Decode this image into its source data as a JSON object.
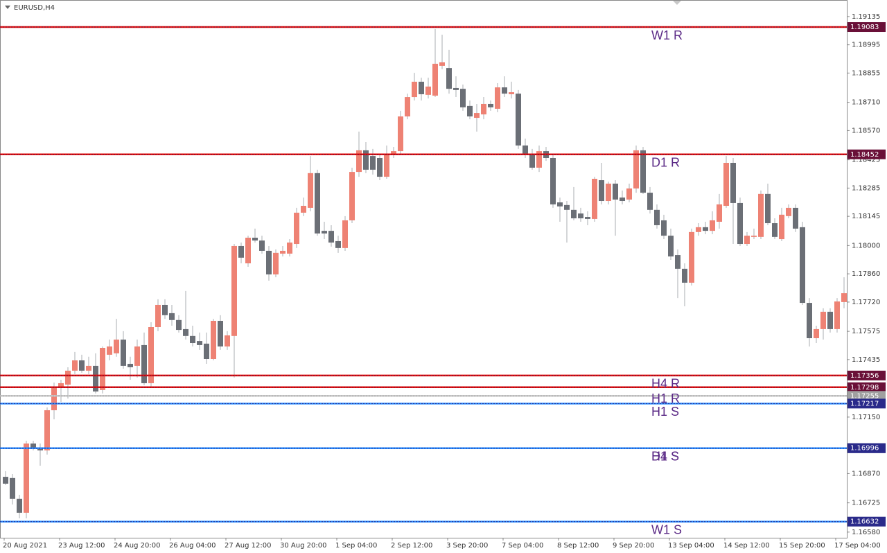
{
  "chart_data": {
    "type": "candlestick",
    "title": "EURUSD,H4",
    "up_color": "#ee8274",
    "down_color": "#6b6f76",
    "wick_color": "#a8acb2",
    "level_text_color": "#5b2a86",
    "categories": [
      "20 Aug 2021",
      null,
      null,
      null,
      null,
      null,
      null,
      null,
      "23 Aug 12:00",
      null,
      null,
      null,
      null,
      null,
      null,
      null,
      "24 Aug 20:00",
      null,
      null,
      null,
      null,
      null,
      null,
      null,
      "26 Aug 04:00",
      null,
      null,
      null,
      null,
      null,
      null,
      null,
      "27 Aug 12:00",
      null,
      null,
      null,
      null,
      null,
      null,
      null,
      "30 Aug 20:00",
      null,
      null,
      null,
      null,
      null,
      null,
      null,
      "1 Sep 04:00",
      null,
      null,
      null,
      null,
      null,
      null,
      null,
      "2 Sep 12:00",
      null,
      null,
      null,
      null,
      null,
      null,
      null,
      "3 Sep 20:00",
      null,
      null,
      null,
      null,
      null,
      null,
      null,
      "7 Sep 04:00",
      null,
      null,
      null,
      null,
      null,
      null,
      null,
      "8 Sep 12:00",
      null,
      null,
      null,
      null,
      null,
      null,
      null,
      "9 Sep 20:00",
      null,
      null,
      null,
      null,
      null,
      null,
      null,
      "13 Sep 04:00",
      null,
      null,
      null,
      null,
      null,
      null,
      null,
      "14 Sep 12:00",
      null,
      null,
      null,
      null,
      null,
      null,
      null,
      "15 Sep 20:00",
      null,
      null,
      null,
      null,
      null,
      null,
      null,
      "17 Sep 04:00",
      null
    ],
    "open": [
      1.16854,
      1.16848,
      1.16745,
      1.16676,
      1.17019,
      1.16992,
      1.16985,
      1.17184,
      1.17294,
      1.17311,
      1.1738,
      1.17431,
      1.1738,
      1.17404,
      1.17284,
      1.17459,
      1.17466,
      1.17534,
      1.17414,
      1.17404,
      1.17507,
      1.17318,
      1.17596,
      1.17706,
      1.17665,
      1.17631,
      1.17586,
      1.17552,
      1.17527,
      1.17514,
      1.17438,
      1.17627,
      1.175,
      1.17552,
      1.17998,
      1.17912,
      1.18039,
      1.18025,
      1.17974,
      1.17857,
      1.1796,
      1.1796,
      1.18008,
      1.18163,
      1.18187,
      1.18359,
      1.18073,
      1.18073,
      1.18022,
      1.17988,
      1.18125,
      1.18365,
      1.18472,
      1.18444,
      1.18434,
      1.18341,
      1.18451,
      1.18468,
      1.1864,
      1.18736,
      1.18812,
      1.18747,
      1.18743,
      1.18891,
      1.1888,
      1.18781,
      1.18777,
      1.18692,
      1.18633,
      1.1865,
      1.18702,
      1.18678,
      1.18784,
      1.1875,
      1.18753,
      1.18496,
      1.18455,
      1.18386,
      1.18468,
      1.18434,
      1.18214,
      1.18201,
      1.18177,
      1.18159,
      1.18142,
      1.18132,
      1.18324,
      1.18221,
      1.18307,
      1.18238,
      1.18228,
      1.18283,
      1.18472,
      1.18262,
      1.18177,
      1.18125,
      1.18049,
      1.17953,
      1.17885,
      1.17816,
      1.18067,
      1.18091,
      1.18073,
      1.18118,
      1.18197,
      1.1841,
      1.18211,
      1.18008,
      1.18043,
      1.18043,
      1.18256,
      1.18111,
      1.18032,
      1.18146,
      1.18187,
      1.18091,
      1.17716,
      1.17541,
      1.17586,
      1.17672,
      1.17586,
      1.1772
    ],
    "high": [
      1.16882,
      1.16868,
      1.16765,
      1.17033,
      1.17033,
      1.17019,
      1.17198,
      1.17321,
      1.17335,
      1.17397,
      1.17473,
      1.17459,
      1.17449,
      1.17466,
      1.175,
      1.17534,
      1.17637,
      1.17576,
      1.17449,
      1.17534,
      1.17569,
      1.1762,
      1.17734,
      1.17734,
      1.17706,
      1.17655,
      1.17775,
      1.17603,
      1.17569,
      1.17569,
      1.17637,
      1.17655,
      1.17576,
      1.18008,
      1.18015,
      1.18049,
      1.18084,
      1.18049,
      1.17998,
      1.17981,
      1.17998,
      1.18032,
      1.18187,
      1.18238,
      1.18444,
      1.18376,
      1.18118,
      1.18101,
      1.18049,
      1.18146,
      1.18386,
      1.18565,
      1.18513,
      1.18479,
      1.18455,
      1.18496,
      1.18489,
      1.18668,
      1.18753,
      1.18856,
      1.18832,
      1.18832,
      1.19073,
      1.19045,
      1.1897,
      1.18839,
      1.18798,
      1.18719,
      1.18702,
      1.18736,
      1.18719,
      1.18805,
      1.18839,
      1.18812,
      1.18771,
      1.1853,
      1.18479,
      1.18496,
      1.18489,
      1.18455,
      1.18238,
      1.18221,
      1.1829,
      1.18187,
      1.1817,
      1.18341,
      1.1841,
      1.18317,
      1.18324,
      1.18273,
      1.18307,
      1.18496,
      1.18489,
      1.1829,
      1.18204,
      1.18153,
      1.18084,
      1.17981,
      1.17912,
      1.18084,
      1.18111,
      1.18118,
      1.1817,
      1.18256,
      1.18444,
      1.18434,
      1.18238,
      1.18067,
      1.18084,
      1.18273,
      1.18307,
      1.18135,
      1.18187,
      1.18204,
      1.18204,
      1.18118,
      1.1774,
      1.17603,
      1.17689,
      1.17689,
      1.1774,
      1.17843
    ],
    "low": [
      1.16813,
      1.16717,
      1.16648,
      1.16648,
      1.16985,
      1.16909,
      1.16964,
      1.17139,
      1.17225,
      1.17242,
      1.17363,
      1.1737,
      1.17363,
      1.17267,
      1.17267,
      1.17431,
      1.17449,
      1.1739,
      1.17335,
      1.17346,
      1.17308,
      1.17301,
      1.17576,
      1.17637,
      1.17603,
      1.17569,
      1.17534,
      1.175,
      1.17483,
      1.17414,
      1.17431,
      1.17483,
      1.17483,
      1.17346,
      1.17912,
      1.17895,
      1.18015,
      1.1796,
      1.17826,
      1.17843,
      1.17946,
      1.17946,
      1.17988,
      1.18146,
      1.1817,
      1.18049,
      1.18032,
      1.17995,
      1.17964,
      1.17974,
      1.18111,
      1.18341,
      1.18359,
      1.18352,
      1.18324,
      1.18331,
      1.18434,
      1.18455,
      1.18626,
      1.18719,
      1.18719,
      1.18729,
      1.18736,
      1.18874,
      1.18753,
      1.18736,
      1.18668,
      1.18626,
      1.18565,
      1.18626,
      1.18668,
      1.18661,
      1.18736,
      1.18729,
      1.18479,
      1.18434,
      1.18376,
      1.18365,
      1.1842,
      1.18187,
      1.18118,
      1.18015,
      1.18125,
      1.18118,
      1.18101,
      1.18118,
      1.18204,
      1.18204,
      1.18049,
      1.18204,
      1.18214,
      1.18262,
      1.18256,
      1.18159,
      1.18084,
      1.18032,
      1.17929,
      1.1774,
      1.17699,
      1.17802,
      1.18049,
      1.18056,
      1.18056,
      1.18084,
      1.18187,
      1.18008,
      1.17998,
      1.17998,
      1.18032,
      1.18032,
      1.18101,
      1.18032,
      1.18022,
      1.18135,
      1.18067,
      1.17706,
      1.175,
      1.17517,
      1.17534,
      1.17569,
      1.17569,
      1.17689
    ],
    "close": [
      1.1682,
      1.16745,
      1.16676,
      1.17019,
      1.16992,
      1.16985,
      1.17184,
      1.17294,
      1.17318,
      1.1738,
      1.17431,
      1.1738,
      1.17404,
      1.17277,
      1.17493,
      1.175,
      1.17534,
      1.17404,
      1.17397,
      1.175,
      1.17318,
      1.17596,
      1.17706,
      1.17655,
      1.17631,
      1.17582,
      1.17552,
      1.17517,
      1.17507,
      1.17438,
      1.17627,
      1.175,
      1.17555,
      1.17998,
      1.1794,
      1.18039,
      1.18025,
      1.17974,
      1.17857,
      1.17964,
      1.17974,
      1.18015,
      1.18163,
      1.18197,
      1.18359,
      1.1806,
      1.1806,
      1.18015,
      1.17988,
      1.18125,
      1.18365,
      1.18472,
      1.18376,
      1.18376,
      1.18341,
      1.18451,
      1.18468,
      1.1864,
      1.18736,
      1.18812,
      1.1875,
      1.18788,
      1.18901,
      1.18908,
      1.18777,
      1.18771,
      1.18685,
      1.1864,
      1.18657,
      1.18702,
      1.18685,
      1.18784,
      1.18753,
      1.1876,
      1.18496,
      1.18455,
      1.18386,
      1.18468,
      1.18434,
      1.18204,
      1.18194,
      1.18177,
      1.18135,
      1.18135,
      1.18132,
      1.18331,
      1.18221,
      1.18307,
      1.18228,
      1.18221,
      1.18283,
      1.18472,
      1.18262,
      1.18177,
      1.18101,
      1.18049,
      1.17946,
      1.17885,
      1.17816,
      1.18067,
      1.18091,
      1.18073,
      1.18125,
      1.18204,
      1.1841,
      1.18211,
      1.18008,
      1.18049,
      1.18049,
      1.18256,
      1.18111,
      1.18043,
      1.18153,
      1.18187,
      1.18084,
      1.17716,
      1.17541,
      1.17586,
      1.17672,
      1.17586,
      1.17723,
      1.17764
    ],
    "ylim": [
      1.16552,
      1.19217
    ],
    "yticks": [
      1.19135,
      1.18995,
      1.18855,
      {
        "value": 1.1871,
        "label": "1.18710"
      },
      {
        "value": 1.1857,
        "label": "1.18570"
      },
      1.18425,
      1.18285,
      1.18145,
      {
        "value": 1.18,
        "label": "1.18000"
      },
      {
        "value": 1.1786,
        "label": "1.17860"
      },
      {
        "value": 1.1772,
        "label": "1.17720"
      },
      1.17575,
      1.17435,
      {
        "value": 1.1715,
        "label": "1.17150"
      },
      {
        "value": 1.1687,
        "label": "1.16870"
      },
      1.16725,
      {
        "value": 1.1658,
        "label": "1.16580"
      }
    ],
    "levels": [
      {
        "value": 1.19083,
        "name": "W1 R",
        "color": "#e01010",
        "label_color": "#6a1038"
      },
      {
        "value": 1.18452,
        "name": "D1 R",
        "color": "#e01010",
        "label_color": "#6a1038"
      },
      {
        "value": 1.17356,
        "color": "#e01010",
        "label_color": "#6a1038"
      },
      {
        "value": 1.17298,
        "name": "H4 R",
        "color": "#e01010",
        "label_color": "#6a1038"
      },
      {
        "value": 1.17255,
        "name": "H1 R",
        "color": "#c8c8c8",
        "label_color": "#a0a0a0"
      },
      {
        "value": 1.17217,
        "name": "H1 S",
        "color": "#2a8cff",
        "label_color": "#2a2a8a"
      },
      {
        "value": 1.16996,
        "name": "D1 S",
        "color": "#2a8cff",
        "label_color": "#2a2a8a"
      },
      {
        "value": 1.16996,
        "name": "H4 S",
        "color": "#2a8cff",
        "label_color": "#2a2a8a"
      },
      {
        "value": 1.16632,
        "name": "W1 S",
        "color": "#2a8cff",
        "label_color": "#2a2a8a"
      }
    ]
  }
}
